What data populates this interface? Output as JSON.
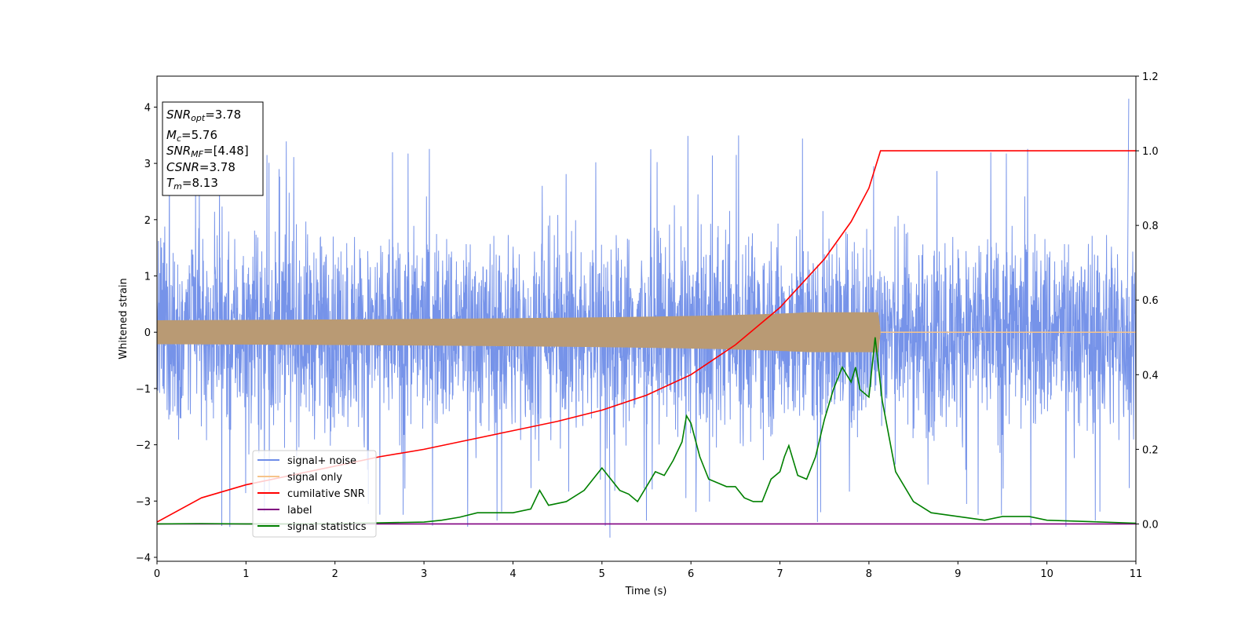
{
  "chart_data": {
    "type": "line",
    "xlabel": "Time (s)",
    "ylabel": "Whitened strain",
    "xlim": [
      0,
      11
    ],
    "ylim_left": [
      -4.07,
      4.55
    ],
    "ylim_right": [
      -0.1,
      1.2
    ],
    "xticks": [
      "0",
      "1",
      "2",
      "3",
      "4",
      "5",
      "6",
      "7",
      "8",
      "9",
      "10",
      "11"
    ],
    "yticks_left": [
      "−4",
      "−3",
      "−2",
      "−1",
      "0",
      "1",
      "2",
      "3",
      "4"
    ],
    "yticks_right": [
      "0.0",
      "0.2",
      "0.4",
      "0.6",
      "0.8",
      "1.0",
      "1.2"
    ],
    "annotation": [
      {
        "sym": "SNR",
        "sub": "opt",
        "value": "=3.78"
      },
      {
        "sym": "M",
        "sub": "c",
        "value": "=5.76"
      },
      {
        "sym": "SNR",
        "sub": "MF",
        "value": "=[4.48]"
      },
      {
        "sym": "CSNR",
        "sub": "",
        "value": "=3.78"
      },
      {
        "sym": "T",
        "sub": "m",
        "value": "=8.13"
      }
    ],
    "legend": [
      "signal+ noise",
      "signal only",
      "cumilative SNR",
      "label",
      "signal statistics"
    ],
    "colors": {
      "noise": "#6f8de8",
      "signal": "#f6c48a",
      "signal_env": "#b99a74",
      "csnr": "#ff0000",
      "label": "#800080",
      "stats": "#008000"
    },
    "series": {
      "signal_noise": {
        "axis": "left",
        "mean": 0.0,
        "std": 0.85,
        "x_range": [
          0,
          11
        ],
        "max_spike": 4.15,
        "min_spike": -3.65
      },
      "signal_only": {
        "axis": "left",
        "end_time": 8.13,
        "peak_amplitude": 0.35
      },
      "cumulative_snr": {
        "axis": "right",
        "x": [
          0,
          0.5,
          1,
          1.5,
          2,
          2.5,
          3,
          3.5,
          4,
          4.5,
          5,
          5.5,
          6,
          6.5,
          7,
          7.5,
          7.8,
          8.0,
          8.13,
          8.14,
          11
        ],
        "y": [
          0.005,
          0.07,
          0.105,
          0.13,
          0.155,
          0.18,
          0.2,
          0.225,
          0.25,
          0.275,
          0.305,
          0.345,
          0.4,
          0.48,
          0.58,
          0.71,
          0.81,
          0.9,
          1.0,
          1.0,
          1.0
        ]
      },
      "label": {
        "axis": "right",
        "x": [
          0,
          11
        ],
        "y": [
          0.0,
          0.0
        ]
      },
      "signal_statistics": {
        "axis": "right",
        "x": [
          0,
          0.5,
          1,
          1.5,
          2,
          2.5,
          3,
          3.2,
          3.4,
          3.6,
          3.8,
          4.0,
          4.2,
          4.3,
          4.4,
          4.6,
          4.8,
          4.9,
          5.0,
          5.1,
          5.2,
          5.3,
          5.4,
          5.5,
          5.6,
          5.7,
          5.8,
          5.9,
          5.95,
          6.0,
          6.1,
          6.2,
          6.3,
          6.4,
          6.5,
          6.6,
          6.7,
          6.8,
          6.9,
          7.0,
          7.05,
          7.1,
          7.2,
          7.3,
          7.4,
          7.5,
          7.6,
          7.65,
          7.7,
          7.8,
          7.85,
          7.9,
          8.0,
          8.07,
          8.15,
          8.3,
          8.5,
          8.7,
          9.0,
          9.3,
          9.5,
          9.8,
          10.0,
          10.5,
          11
        ],
        "y": [
          0.0,
          0.001,
          0.0,
          0.0,
          0.001,
          0.003,
          0.005,
          0.01,
          0.018,
          0.03,
          0.03,
          0.03,
          0.04,
          0.09,
          0.05,
          0.06,
          0.09,
          0.12,
          0.15,
          0.12,
          0.09,
          0.08,
          0.06,
          0.1,
          0.14,
          0.13,
          0.17,
          0.22,
          0.29,
          0.27,
          0.18,
          0.12,
          0.11,
          0.1,
          0.1,
          0.07,
          0.06,
          0.06,
          0.12,
          0.14,
          0.18,
          0.21,
          0.13,
          0.12,
          0.18,
          0.28,
          0.36,
          0.39,
          0.42,
          0.38,
          0.42,
          0.36,
          0.34,
          0.5,
          0.33,
          0.14,
          0.06,
          0.03,
          0.02,
          0.01,
          0.02,
          0.02,
          0.01,
          0.006,
          0.002
        ]
      }
    }
  }
}
